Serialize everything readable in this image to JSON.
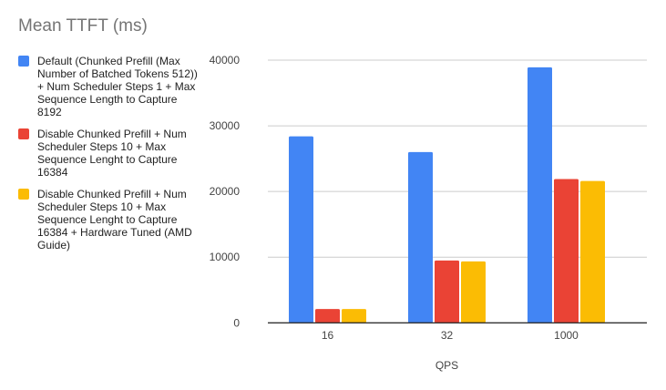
{
  "chart_data": {
    "type": "bar",
    "title": "Mean TTFT (ms)",
    "xlabel": "QPS",
    "ylabel": "",
    "categories": [
      "16",
      "32",
      "1000"
    ],
    "ylim": [
      0,
      40000
    ],
    "yticks": [
      "0",
      "10000",
      "20000",
      "30000",
      "40000"
    ],
    "grid": true,
    "legend_placement": "left",
    "series": [
      {
        "name": "Default (Chunked Prefill (Max Number of Batched Tokens 512)) + Num Scheduler Steps 1 + Max Sequence Length to Capture 8192",
        "color": "#4285f4",
        "values": [
          28400,
          26000,
          38900
        ]
      },
      {
        "name": "Disable Chunked Prefill + Num Scheduler Steps 10 + Max Sequence Lenght to Capture 16384",
        "color": "#ea4335",
        "values": [
          2100,
          9500,
          21900
        ]
      },
      {
        "name": "Disable Chunked Prefill + Num Scheduler Steps 10 + Max Sequence Lenght to Capture 16384 + Hardware Tuned (AMD Guide)",
        "color": "#fbbc04",
        "values": [
          2100,
          9350,
          21600
        ]
      }
    ]
  }
}
